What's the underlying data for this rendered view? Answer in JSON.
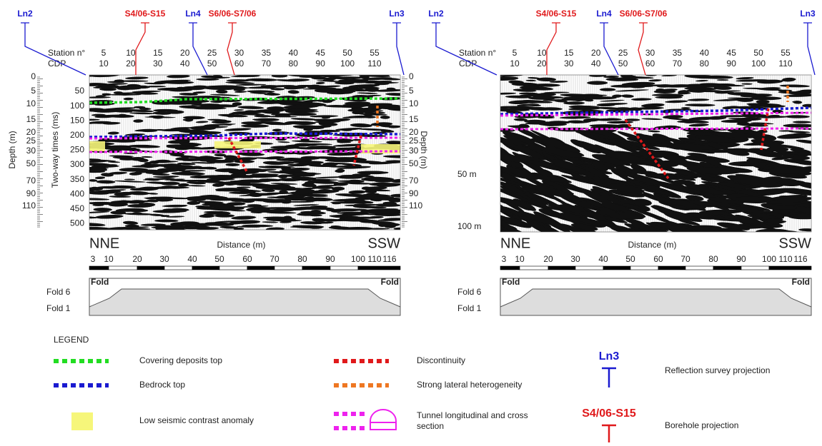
{
  "panels": [
    {
      "survey_lines": [
        "Ln2",
        "Ln4",
        "Ln3"
      ],
      "boreholes": [
        "S4/06-S15",
        "S6/06-S7/06"
      ],
      "station_label": "Station n°",
      "cdp_label": "CDP",
      "stations": [
        5,
        10,
        15,
        20,
        25,
        30,
        35,
        40,
        45,
        50,
        55
      ],
      "cdps": [
        10,
        20,
        30,
        40,
        50,
        60,
        70,
        80,
        90,
        100,
        110
      ],
      "depth_title": "Depth (m)",
      "depth_ticks": [
        0,
        5,
        10,
        15,
        20,
        25,
        30,
        50,
        70,
        90,
        110
      ],
      "twt_title": "Two-way times (ms)",
      "twt_ticks": [
        50,
        100,
        150,
        200,
        250,
        300,
        350,
        400,
        450,
        500
      ],
      "direction_left": "NNE",
      "direction_right": "SSW",
      "distance_title": "Distance (m)",
      "distance_ticks": [
        3,
        10,
        20,
        30,
        40,
        50,
        60,
        70,
        80,
        90,
        100,
        110,
        116
      ],
      "fold_labels": [
        "Fold 6",
        "Fold 1"
      ],
      "fold_tag": "Fold"
    },
    {
      "survey_lines": [
        "Ln2",
        "Ln4",
        "Ln3"
      ],
      "boreholes": [
        "S4/06-S15",
        "S6/06-S7/06"
      ],
      "station_label": "Station n°",
      "cdp_label": "CDP",
      "stations": [
        5,
        10,
        15,
        20,
        25,
        30,
        35,
        40,
        45,
        50,
        55
      ],
      "cdps": [
        10,
        20,
        30,
        40,
        50,
        60,
        70,
        80,
        90,
        100,
        110
      ],
      "depth_marks": [
        "50 m",
        "100 m"
      ],
      "direction_left": "NNE",
      "direction_right": "SSW",
      "distance_title": "Distance (m)",
      "distance_ticks": [
        3,
        10,
        20,
        30,
        40,
        50,
        60,
        70,
        80,
        90,
        100,
        110,
        116
      ],
      "fold_labels": [
        "Fold 6",
        "Fold 1"
      ],
      "fold_tag": "Fold"
    }
  ],
  "legend": {
    "title": "LEGEND",
    "items": [
      "Covering deposits top",
      "Bedrock top",
      "Low seismic contrast anomaly",
      "Discontinuity",
      "Strong lateral heterogeneity",
      "Tunnel longitudinal and cross section",
      "Reflection survey projection",
      "Borehole projection"
    ],
    "survey_symbol": "Ln3",
    "borehole_symbol": "S4/06-S15"
  }
}
